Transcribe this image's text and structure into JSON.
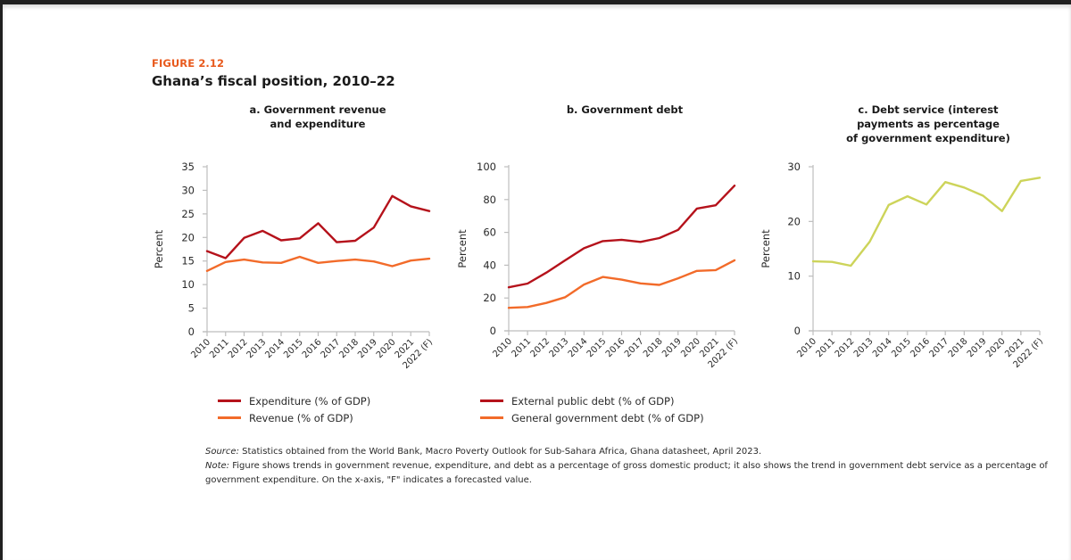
{
  "figure": {
    "label": "FIGURE 2.12",
    "title": "Ghana’s fiscal position, 2010–22"
  },
  "colors": {
    "expenditure": "#b5121b",
    "revenue": "#f26b2a",
    "debt_service": "#cdd45a",
    "figure_label": "#e8591c"
  },
  "chart_data": [
    {
      "id": "a",
      "type": "line",
      "title": "a. Government revenue\nand expenditure",
      "xlabel": "",
      "ylabel": "Percent",
      "x": [
        "2010",
        "2011",
        "2012",
        "2013",
        "2014",
        "2015",
        "2016",
        "2017",
        "2018",
        "2019",
        "2020",
        "2021",
        "2022 (F)"
      ],
      "ylim": [
        0,
        35
      ],
      "yticks": [
        0,
        5,
        10,
        15,
        20,
        25,
        30,
        35
      ],
      "grid": false,
      "legend_position": "bottom",
      "series": [
        {
          "name": "Expenditure (% of GDP)",
          "color": "#b5121b",
          "values": [
            17.1,
            15.6,
            19.9,
            21.4,
            19.4,
            19.8,
            23.0,
            19.0,
            19.3,
            22.1,
            28.8,
            26.6,
            25.6
          ]
        },
        {
          "name": "Revenue (% of GDP)",
          "color": "#f26b2a",
          "values": [
            12.9,
            14.8,
            15.3,
            14.7,
            14.6,
            15.9,
            14.6,
            15.0,
            15.3,
            14.9,
            13.9,
            15.1,
            15.5
          ]
        }
      ]
    },
    {
      "id": "b",
      "type": "line",
      "title": "b. Government debt",
      "xlabel": "",
      "ylabel": "Percent",
      "x": [
        "2010",
        "2011",
        "2012",
        "2013",
        "2014",
        "2015",
        "2016",
        "2017",
        "2018",
        "2019",
        "2020",
        "2021",
        "2022 (F)"
      ],
      "ylim": [
        0,
        100
      ],
      "yticks": [
        0,
        20,
        40,
        60,
        80,
        100
      ],
      "grid": false,
      "legend_position": "bottom",
      "series": [
        {
          "name": "External public debt (% of GDP)",
          "color": "#b5121b",
          "values": [
            26.5,
            28.8,
            35.5,
            43.0,
            50.3,
            54.7,
            55.5,
            54.2,
            56.5,
            61.5,
            74.5,
            76.5,
            88.5
          ]
        },
        {
          "name": "General government debt (% of GDP)",
          "color": "#f26b2a",
          "values": [
            14.0,
            14.5,
            17.0,
            20.5,
            28.2,
            32.8,
            31.2,
            28.9,
            28.0,
            32.0,
            36.5,
            37.0,
            43.0
          ]
        }
      ]
    },
    {
      "id": "c",
      "type": "line",
      "title": "c. Debt service (interest\npayments as percentage\nof government expenditure)",
      "xlabel": "",
      "ylabel": "Percent",
      "x": [
        "2010",
        "2011",
        "2012",
        "2013",
        "2014",
        "2015",
        "2016",
        "2017",
        "2018",
        "2019",
        "2020",
        "2021",
        "2022 (F)"
      ],
      "ylim": [
        0,
        30
      ],
      "yticks": [
        0,
        10,
        20,
        30
      ],
      "grid": false,
      "legend_position": "none",
      "series": [
        {
          "name": "Debt service",
          "color": "#cdd45a",
          "values": [
            12.7,
            12.6,
            11.9,
            16.3,
            23.0,
            24.6,
            23.1,
            27.2,
            26.2,
            24.7,
            21.9,
            27.4,
            28.0
          ]
        }
      ]
    }
  ],
  "notes": {
    "source_label": "Source:",
    "source_text": " Statistics obtained from the World Bank, Macro Poverty Outlook for Sub-Sahara Africa, Ghana datasheet, April 2023.",
    "note_label": "Note:",
    "note_text": " Figure shows trends in government revenue, expenditure, and debt as a percentage of gross domestic product; it also shows the trend in government debt service as a percentage of government expenditure. On the x-axis, \"F\" indicates a forecasted value."
  }
}
